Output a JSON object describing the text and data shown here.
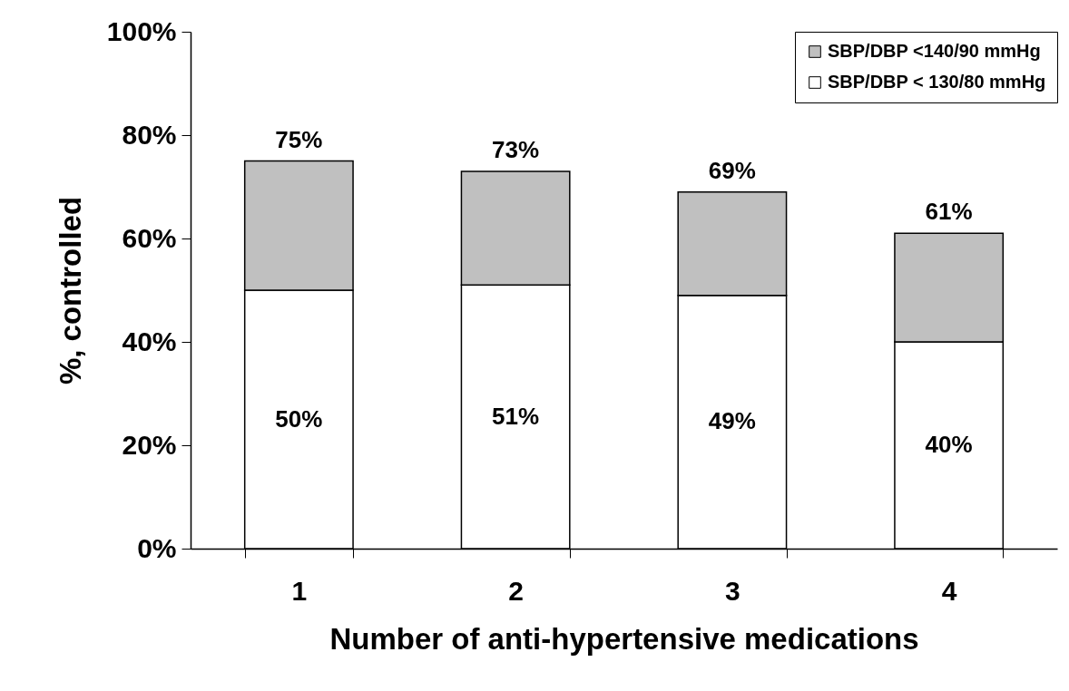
{
  "chart_data": {
    "type": "bar",
    "stacked": true,
    "xlabel": "Number of anti-hypertensive medications",
    "ylabel": "%, controlled",
    "categories": [
      "1",
      "2",
      "3",
      "4"
    ],
    "series": [
      {
        "name": "SBP/DBP < 130/80 mmHg",
        "color": "#ffffff",
        "values": [
          50,
          51,
          49,
          40
        ],
        "value_labels": [
          "50%",
          "51%",
          "49%",
          "40%"
        ]
      },
      {
        "name": "SBP/DBP <140/90 mmHg",
        "color": "#c0c0c0",
        "values": [
          25,
          22,
          20,
          21
        ]
      }
    ],
    "totals": [
      "75%",
      "73%",
      "69%",
      "61%"
    ],
    "ylim": [
      0,
      100
    ],
    "yticks": [
      {
        "value": 0,
        "label": "0%"
      },
      {
        "value": 20,
        "label": "20%"
      },
      {
        "value": 40,
        "label": "40%"
      },
      {
        "value": 60,
        "label": "60%"
      },
      {
        "value": 80,
        "label": "80%"
      },
      {
        "value": 100,
        "label": "100%"
      }
    ],
    "grid": false,
    "legend": "top right"
  }
}
